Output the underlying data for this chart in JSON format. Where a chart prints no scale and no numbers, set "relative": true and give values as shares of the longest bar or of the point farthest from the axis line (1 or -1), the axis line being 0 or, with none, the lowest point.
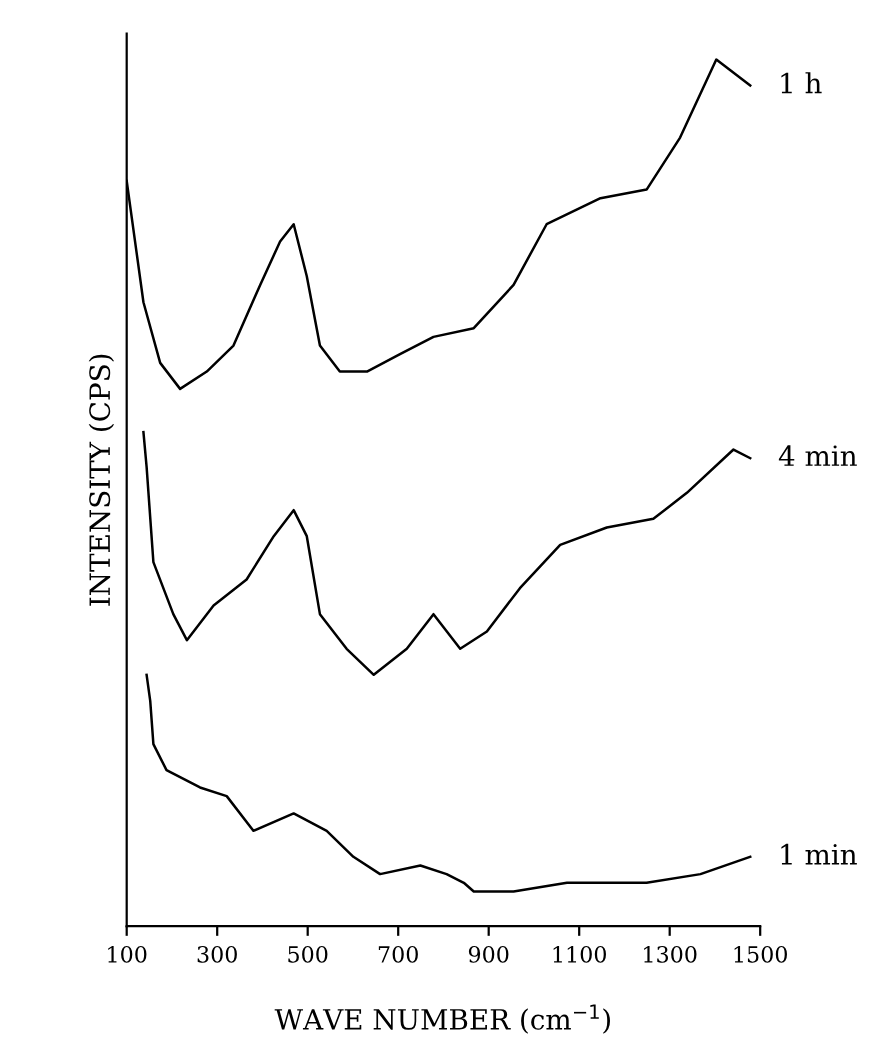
{
  "chart_data": {
    "type": "line",
    "relative": true,
    "xlabel": "WAVE NUMBER (cm$^{−1}$)",
    "ylabel": "INTENSITY (CPS)",
    "xlim": [
      100,
      1500
    ],
    "xticks": [
      100,
      300,
      500,
      700,
      900,
      1100,
      1300,
      1500
    ],
    "tick_labels": "x",
    "grid": false,
    "legend": false,
    "marker": "none",
    "line_style": "solid",
    "series": [
      {
        "name": "1 h",
        "color": "#000000",
        "x": [
          100,
          137,
          174,
          218,
          277,
          336,
          395,
          439,
          469,
          498,
          527,
          571,
          631,
          704,
          778,
          867,
          955,
          1028,
          1147,
          1249,
          1323,
          1403,
          1478
        ],
        "values": [
          0.86,
          0.72,
          0.65,
          0.62,
          0.64,
          0.67,
          0.74,
          0.79,
          0.81,
          0.75,
          0.67,
          0.64,
          0.64,
          0.66,
          0.68,
          0.69,
          0.74,
          0.81,
          0.84,
          0.85,
          0.91,
          1.0,
          0.97
        ]
      },
      {
        "name": "4 min",
        "color": "#000000",
        "x": [
          137,
          144,
          159,
          203,
          233,
          292,
          365,
          425,
          469,
          498,
          527,
          586,
          646,
          719,
          778,
          837,
          896,
          969,
          1058,
          1161,
          1264,
          1338,
          1441,
          1478
        ],
        "values": [
          0.57,
          0.53,
          0.42,
          0.36,
          0.33,
          0.37,
          0.4,
          0.45,
          0.48,
          0.45,
          0.36,
          0.32,
          0.29,
          0.32,
          0.36,
          0.32,
          0.34,
          0.39,
          0.44,
          0.46,
          0.47,
          0.5,
          0.55,
          0.54
        ]
      },
      {
        "name": "1 min",
        "color": "#000000",
        "x": [
          144,
          152,
          159,
          188,
          262,
          321,
          380,
          469,
          542,
          601,
          660,
          749,
          807,
          845,
          867,
          955,
          1073,
          1249,
          1368,
          1478
        ],
        "values": [
          0.29,
          0.26,
          0.21,
          0.18,
          0.16,
          0.15,
          0.11,
          0.13,
          0.11,
          0.08,
          0.06,
          0.07,
          0.06,
          0.05,
          0.04,
          0.04,
          0.05,
          0.05,
          0.06,
          0.08
        ]
      }
    ]
  }
}
